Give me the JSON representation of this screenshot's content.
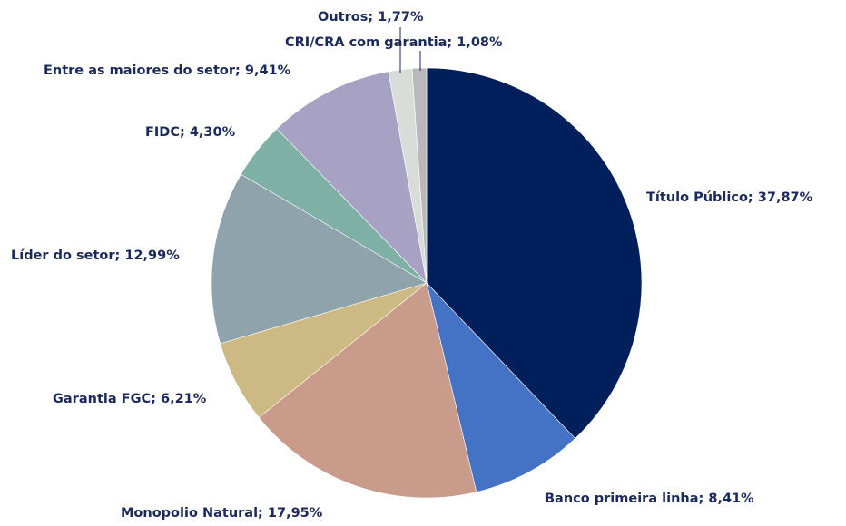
{
  "chart_data": {
    "type": "pie",
    "labels": [
      "Título Público; 37,87%",
      "Banco primeira linha; 8,41%",
      "Monopolio Natural; 17,95%",
      "Garantia FGC; 6,21%",
      "Líder do setor; 12,99%",
      "FIDC; 4,30%",
      "Entre as maiores do setor; 9,41%",
      "Outros; 1,77%",
      "CRI/CRA com garantia; 1,08%"
    ],
    "values": [
      37.87,
      8.41,
      17.95,
      6.21,
      12.99,
      4.3,
      9.41,
      1.77,
      1.08
    ],
    "colors": [
      "#001f5b",
      "#4472c4",
      "#c99b8a",
      "#cdb983",
      "#8fa3ad",
      "#7fb0a5",
      "#a7a1c4",
      "#d9ddda",
      "#b9b9b9"
    ]
  }
}
